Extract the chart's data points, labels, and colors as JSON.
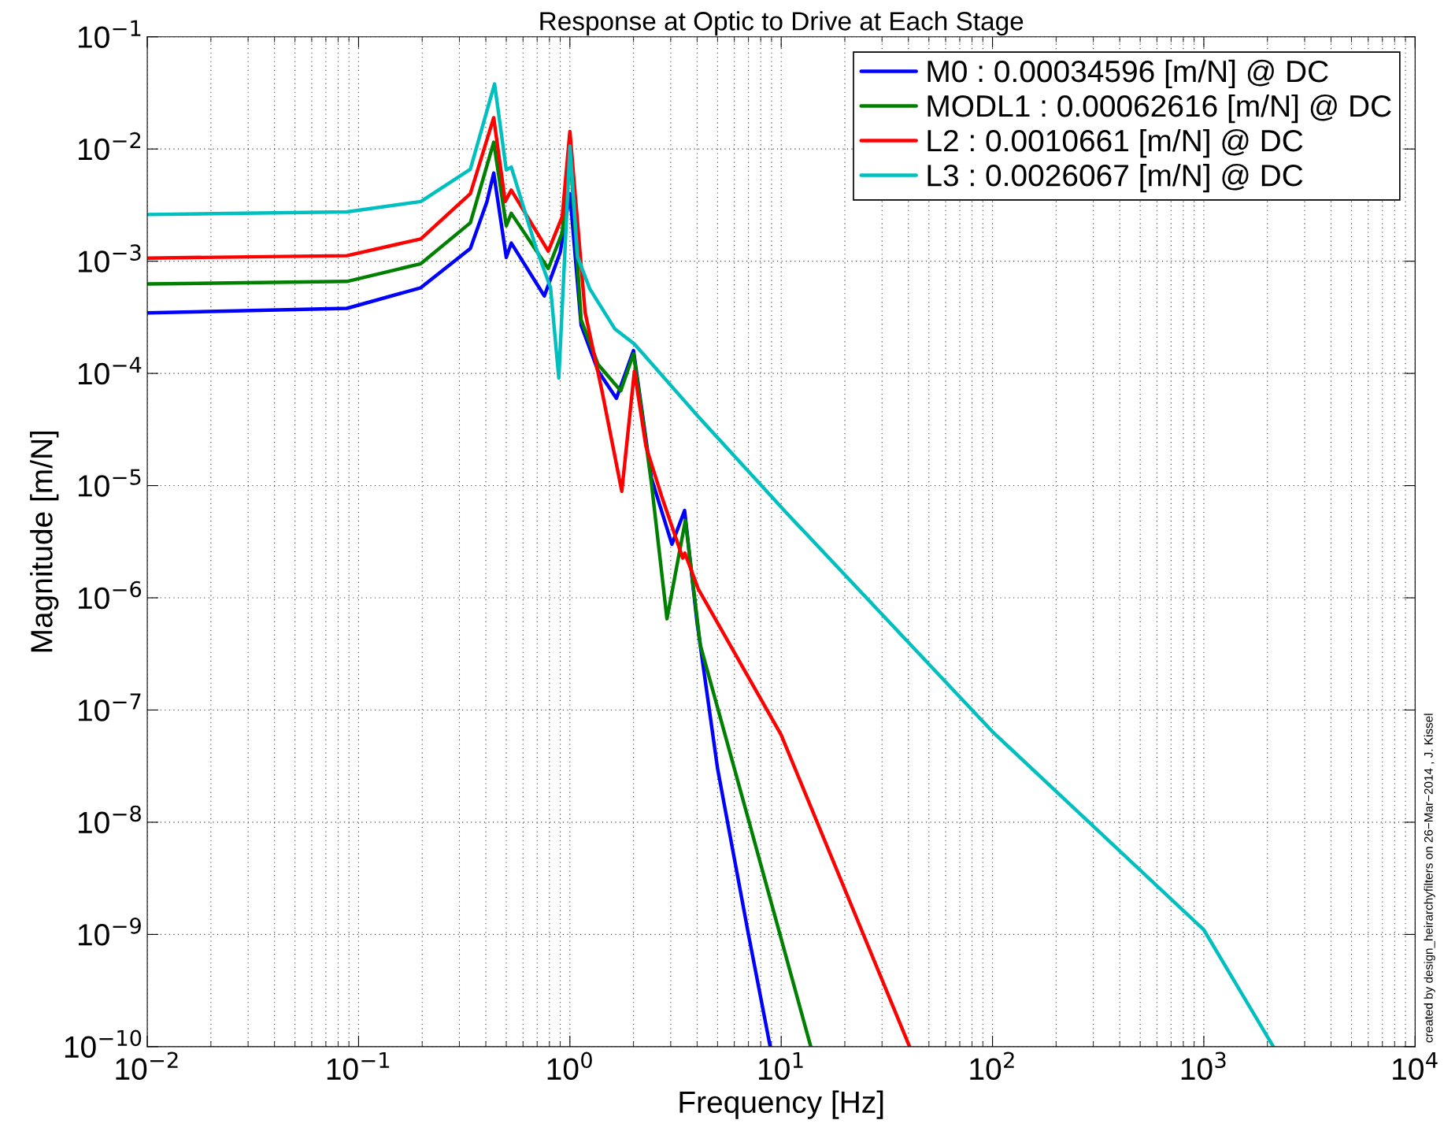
{
  "chart_data": {
    "type": "line",
    "title": "Response at Optic to Drive at Each Stage",
    "xlabel": "Frequency [Hz]",
    "ylabel": "Magnitude [m/N]",
    "annotations": [
      "created by design_heirarchyfilters on 26−Mar−2014 , J. Kissel"
    ],
    "log": "xy",
    "grid": true,
    "legend": "top right",
    "line_style": "solid",
    "marker": "none",
    "xlim": [
      0.01,
      10000
    ],
    "ylim": [
      1e-10,
      0.1
    ],
    "xticks": [
      {
        "value": 0.01,
        "label": "10$^{−2}$"
      },
      {
        "value": 0.1,
        "label": "10$^{−1}$"
      },
      {
        "value": 1,
        "label": "10$^{0}$"
      },
      {
        "value": 10,
        "label": "10$^{1}$"
      },
      {
        "value": 100,
        "label": "10$^{2}$"
      },
      {
        "value": 1000,
        "label": "10$^{3}$"
      },
      {
        "value": 10000,
        "label": "10$^{4}$"
      }
    ],
    "yticks": [
      {
        "value": 1e-10,
        "label": "10$^{−10}$"
      },
      {
        "value": 1e-09,
        "label": "10$^{−9}$"
      },
      {
        "value": 1e-08,
        "label": "10$^{−8}$"
      },
      {
        "value": 1e-07,
        "label": "10$^{−7}$"
      },
      {
        "value": 1e-06,
        "label": "10$^{−6}$"
      },
      {
        "value": 1e-05,
        "label": "10$^{−5}$"
      },
      {
        "value": 0.0001,
        "label": "10$^{−4}$"
      },
      {
        "value": 0.001,
        "label": "10$^{−3}$"
      },
      {
        "value": 0.01,
        "label": "10$^{−2}$"
      },
      {
        "value": 0.1,
        "label": "10$^{−1}$"
      }
    ],
    "series": [
      {
        "name": "M0 : 0.00034596 [m/N] @ DC",
        "color": "#0000ff",
        "x": [
          0.01,
          0.088,
          0.197,
          0.338,
          0.405,
          0.436,
          0.5,
          0.528,
          0.757,
          0.9,
          1.0,
          1.13,
          1.36,
          1.66,
          2.0,
          2.43,
          3.04,
          3.49,
          4.0,
          5.0,
          7.0,
          8.87
        ],
        "values": [
          0.00034596,
          0.00038,
          0.00058,
          0.0013,
          0.0034,
          0.0061,
          0.00108,
          0.00145,
          0.00049,
          0.0012,
          0.004,
          0.00027,
          0.000105,
          6e-05,
          0.00016,
          1.17e-05,
          3e-06,
          6e-06,
          6e-07,
          3e-08,
          1e-09,
          1e-10
        ]
      },
      {
        "name": "MODL1 : 0.00062616 [m/N] @ DC",
        "color": "#008000",
        "x": [
          0.01,
          0.088,
          0.197,
          0.338,
          0.436,
          0.5,
          0.528,
          0.79,
          0.92,
          1.0,
          1.13,
          1.36,
          1.74,
          2.0,
          2.23,
          2.43,
          2.88,
          3.52,
          4.14,
          7.2,
          13.8
        ],
        "values": [
          0.00062616,
          0.00066,
          0.00095,
          0.0022,
          0.0115,
          0.00207,
          0.00267,
          0.00086,
          0.0018,
          0.01,
          0.0003,
          0.00012,
          7e-05,
          0.00015,
          3.5e-05,
          1.06e-05,
          6.5e-07,
          4.9e-06,
          3.8e-07,
          8.7e-09,
          1e-10
        ]
      },
      {
        "name": "L2 : 0.0010661 [m/N] @ DC",
        "color": "#ff0000",
        "x": [
          0.01,
          0.088,
          0.197,
          0.338,
          0.436,
          0.494,
          0.528,
          0.79,
          0.92,
          1.0,
          1.18,
          1.42,
          1.76,
          2.02,
          2.29,
          2.72,
          3.42,
          3.5,
          4.05,
          10,
          40.5
        ],
        "values": [
          0.0010661,
          0.00112,
          0.00158,
          0.004,
          0.019,
          0.0034,
          0.0043,
          0.00123,
          0.0025,
          0.0143,
          0.00035,
          6.9e-05,
          8.9e-06,
          0.000105,
          2.24e-05,
          8e-06,
          2.26e-06,
          2.5e-06,
          1.2e-06,
          6e-08,
          1e-10
        ]
      },
      {
        "name": "L3 : 0.0026067 [m/N] @ DC",
        "color": "#00bfbf",
        "x": [
          0.01,
          0.088,
          0.197,
          0.338,
          0.44,
          0.5,
          0.528,
          0.69,
          0.81,
          0.886,
          0.97,
          1.0,
          1.087,
          1.24,
          1.63,
          2.02,
          4.06,
          10.7,
          100,
          1000,
          2133
        ],
        "values": [
          0.0026067,
          0.00275,
          0.0034,
          0.0066,
          0.038,
          0.0065,
          0.0069,
          0.00133,
          0.00058,
          9.1e-05,
          0.0031,
          0.0106,
          0.0011,
          0.00057,
          0.00025,
          0.000183,
          4.1e-05,
          5.6e-06,
          6.4e-08,
          1.1e-09,
          1e-10
        ]
      }
    ]
  }
}
